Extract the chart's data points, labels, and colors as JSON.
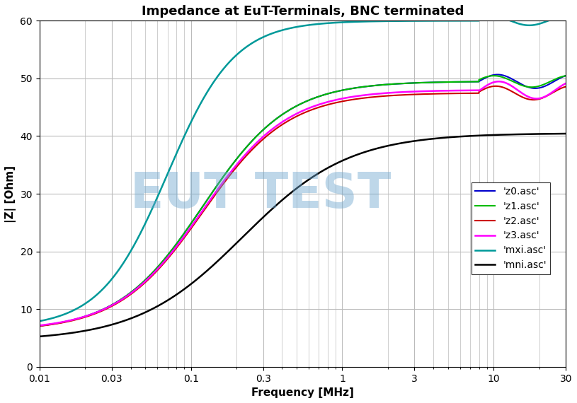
{
  "title": "Impedance at EuT-Terminals, BNC terminated",
  "xlabel": "Frequency [MHz]",
  "ylabel": "|Z| [Ohm]",
  "xlim": [
    0.01,
    30
  ],
  "ylim": [
    0,
    60
  ],
  "yticks": [
    0,
    10,
    20,
    30,
    40,
    50,
    60
  ],
  "xticks": [
    0.01,
    0.03,
    0.1,
    0.3,
    1,
    3,
    10,
    30
  ],
  "xtick_labels": [
    "0.01",
    "0.03",
    "0.1",
    "0.3",
    "1",
    "3",
    "10",
    "30"
  ],
  "watermark_text": "EUT TEST",
  "watermark_color": "#6fa8d0",
  "watermark_alpha": 0.45,
  "bg_color": "#ffffff",
  "grid_color": "#bbbbbb",
  "title_fontsize": 13,
  "label_fontsize": 11,
  "tick_fontsize": 10,
  "legend_fontsize": 10,
  "series": [
    {
      "label": "'z0.asc'",
      "color": "#0000cc",
      "lw": 1.5,
      "type": "z0"
    },
    {
      "label": "'z1.asc'",
      "color": "#00bb00",
      "lw": 1.5,
      "type": "z1"
    },
    {
      "label": "'z2.asc'",
      "color": "#cc0000",
      "lw": 1.5,
      "type": "z2"
    },
    {
      "label": "'z3.asc'",
      "color": "#ff00ff",
      "lw": 1.8,
      "type": "z3"
    },
    {
      "label": "'mxi.asc'",
      "color": "#009999",
      "lw": 1.8,
      "type": "mxi"
    },
    {
      "label": "'mni.asc'",
      "color": "#000000",
      "lw": 1.8,
      "type": "mni"
    }
  ]
}
